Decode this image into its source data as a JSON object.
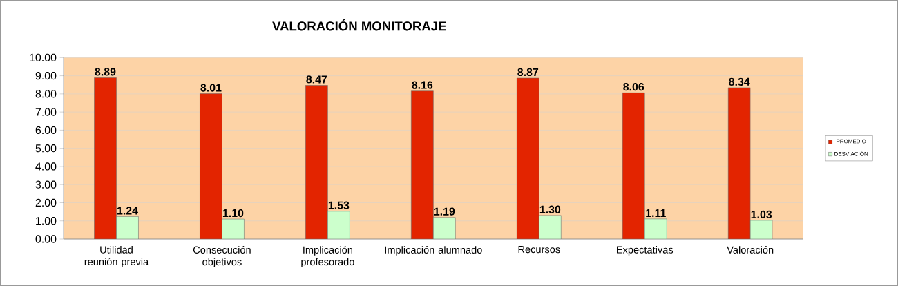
{
  "chart_data": {
    "type": "bar",
    "title": "VALORACIÓN MONITORAJE",
    "categories": [
      "Utilidad reunión previa",
      "Consecución objetivos",
      "Implicación profesorado",
      "Implicación alumnado",
      "Recursos",
      "Expectativas",
      "Valoración"
    ],
    "series": [
      {
        "name": "PROMEDIO",
        "color": "#e32400",
        "values": [
          8.89,
          8.01,
          8.47,
          8.16,
          8.87,
          8.06,
          8.34
        ],
        "value_labels": [
          "8.89",
          "8.01",
          "8.47",
          "8.16",
          "8.87",
          "8.06",
          "8.34"
        ]
      },
      {
        "name": "DESVIACIÓN",
        "color": "#ccffcc",
        "values": [
          1.24,
          1.1,
          1.53,
          1.19,
          1.3,
          1.11,
          1.03
        ],
        "value_labels": [
          "1.24",
          "1.10",
          "1.53",
          "1.19",
          "1.30",
          "1.11",
          "1.03"
        ]
      }
    ],
    "ylim": [
      0,
      10
    ],
    "yticks": [
      {
        "value": 0,
        "label": "0.00"
      },
      {
        "value": 1,
        "label": "1.00"
      },
      {
        "value": 2,
        "label": "2.00"
      },
      {
        "value": 3,
        "label": "3.00"
      },
      {
        "value": 4,
        "label": "4.00"
      },
      {
        "value": 5,
        "label": "5.00"
      },
      {
        "value": 6,
        "label": "6.00"
      },
      {
        "value": 7,
        "label": "7.00"
      },
      {
        "value": 8,
        "label": "8.00"
      },
      {
        "value": 9,
        "label": "9.00"
      },
      {
        "value": 10,
        "label": "10.00"
      }
    ],
    "grid": "y",
    "legend": "right"
  }
}
